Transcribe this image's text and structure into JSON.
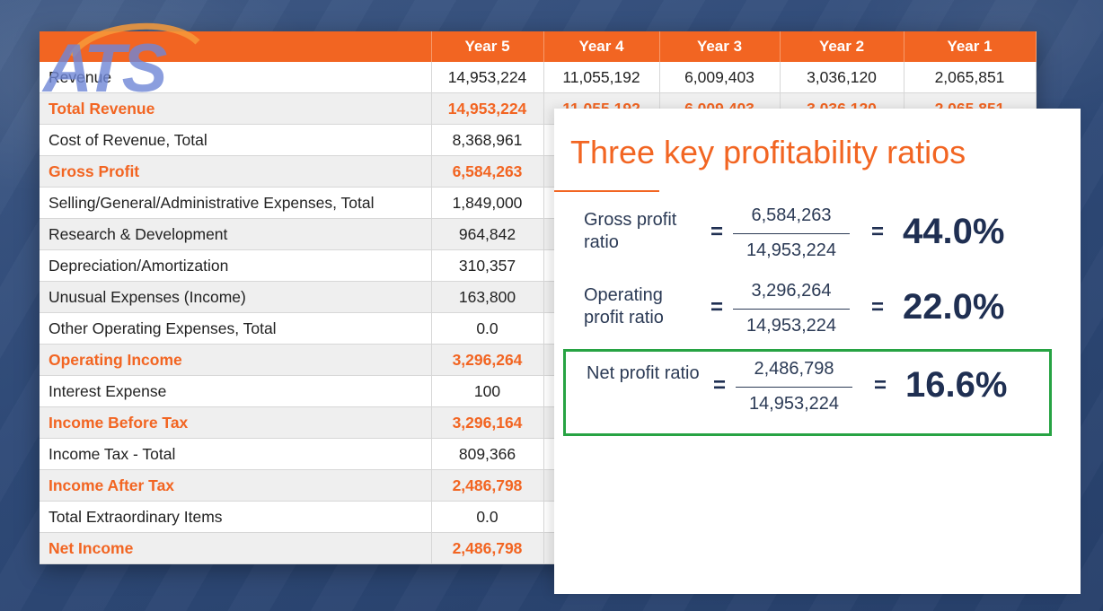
{
  "logo": {
    "text": "ATS"
  },
  "table": {
    "headers": [
      "",
      "Year 5",
      "Year 4",
      "Year 3",
      "Year 2",
      "Year 1"
    ],
    "rows": [
      {
        "label": "Revenue",
        "values": [
          "14,953,224",
          "11,055,192",
          "6,009,403",
          "3,036,120",
          "2,065,851"
        ],
        "highlight": false
      },
      {
        "label": "Total Revenue",
        "values": [
          "14,953,224",
          "11,055,192",
          "6,009,403",
          "3,036,120",
          "2,065,851"
        ],
        "highlight": true
      },
      {
        "label": "Cost of Revenue, Total",
        "values": [
          "8,368,961",
          "",
          "",
          "",
          ""
        ],
        "highlight": false
      },
      {
        "label": "Gross Profit",
        "values": [
          "6,584,263",
          "",
          "",
          "",
          ""
        ],
        "highlight": true
      },
      {
        "label": "Selling/General/Administrative Expenses, Total",
        "values": [
          "1,849,000",
          "",
          "",
          "",
          ""
        ],
        "highlight": false
      },
      {
        "label": "Research & Development",
        "values": [
          "964,842",
          "",
          "",
          "",
          ""
        ],
        "highlight": false
      },
      {
        "label": "Depreciation/Amortization",
        "values": [
          "310,357",
          "",
          "",
          "",
          ""
        ],
        "highlight": false
      },
      {
        "label": "Unusual Expenses (Income)",
        "values": [
          "163,800",
          "",
          "",
          "",
          ""
        ],
        "highlight": false
      },
      {
        "label": "Other Operating Expenses, Total",
        "values": [
          "0.0",
          "",
          "",
          "",
          ""
        ],
        "highlight": false
      },
      {
        "label": "Operating Income",
        "values": [
          "3,296,264",
          "",
          "",
          "",
          ""
        ],
        "highlight": true
      },
      {
        "label": "Interest Expense",
        "values": [
          "100",
          "",
          "",
          "",
          ""
        ],
        "highlight": false
      },
      {
        "label": "Income Before Tax",
        "values": [
          "3,296,164",
          "",
          "",
          "",
          ""
        ],
        "highlight": true
      },
      {
        "label": "Income Tax - Total",
        "values": [
          "809,366",
          "",
          "",
          "",
          ""
        ],
        "highlight": false
      },
      {
        "label": "Income After Tax",
        "values": [
          "2,486,798",
          "",
          "",
          "",
          ""
        ],
        "highlight": true
      },
      {
        "label": "Total Extraordinary Items",
        "values": [
          "0.0",
          "",
          "",
          "",
          ""
        ],
        "highlight": false
      },
      {
        "label": "Net Income",
        "values": [
          "2,486,798",
          "",
          "",
          "",
          ""
        ],
        "highlight": true
      }
    ]
  },
  "panel": {
    "title": "Three key profitability ratios",
    "ratios": [
      {
        "label": "Gross profit ratio",
        "numerator": "6,584,263",
        "denominator": "14,953,224",
        "equals": "=",
        "result": "44.0%",
        "boxed": false
      },
      {
        "label": "Operating profit ratio",
        "numerator": "3,296,264",
        "denominator": "14,953,224",
        "equals": "=",
        "result": "22.0%",
        "boxed": false
      },
      {
        "label": "Net profit ratio",
        "numerator": "2,486,798",
        "denominator": "14,953,224",
        "equals": "=",
        "result": "16.6%",
        "boxed": true
      }
    ]
  },
  "colors": {
    "accent": "#f26522",
    "navy": "#1f2f52",
    "highlight_box": "#27a343",
    "background": "#2f4a78"
  }
}
